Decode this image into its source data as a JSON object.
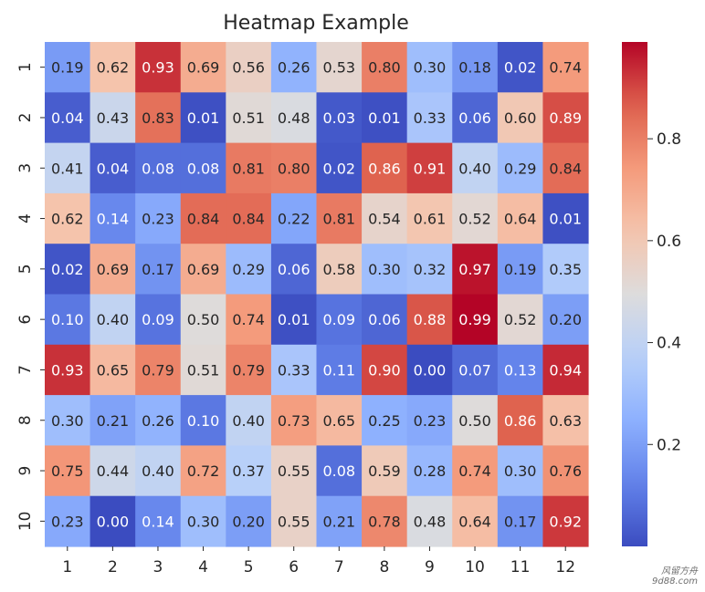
{
  "chart_data": {
    "type": "heatmap",
    "title": "Heatmap Example",
    "xlabel": "",
    "ylabel": "",
    "x_labels": [
      "1",
      "2",
      "3",
      "4",
      "5",
      "6",
      "7",
      "8",
      "9",
      "10",
      "11",
      "12"
    ],
    "y_labels": [
      "1",
      "2",
      "3",
      "4",
      "5",
      "6",
      "7",
      "8",
      "9",
      "10"
    ],
    "values": [
      [
        0.19,
        0.62,
        0.93,
        0.69,
        0.56,
        0.26,
        0.53,
        0.8,
        0.3,
        0.18,
        0.02,
        0.74
      ],
      [
        0.04,
        0.43,
        0.83,
        0.01,
        0.51,
        0.48,
        0.03,
        0.01,
        0.33,
        0.06,
        0.6,
        0.89
      ],
      [
        0.41,
        0.04,
        0.08,
        0.08,
        0.81,
        0.8,
        0.02,
        0.86,
        0.91,
        0.4,
        0.29,
        0.84
      ],
      [
        0.62,
        0.14,
        0.23,
        0.84,
        0.84,
        0.22,
        0.81,
        0.54,
        0.61,
        0.52,
        0.64,
        0.01
      ],
      [
        0.02,
        0.69,
        0.17,
        0.69,
        0.29,
        0.06,
        0.58,
        0.3,
        0.32,
        0.97,
        0.19,
        0.35
      ],
      [
        0.1,
        0.4,
        0.09,
        0.5,
        0.74,
        0.01,
        0.09,
        0.06,
        0.88,
        0.99,
        0.52,
        0.2
      ],
      [
        0.93,
        0.65,
        0.79,
        0.51,
        0.79,
        0.33,
        0.11,
        0.9,
        0.0,
        0.07,
        0.13,
        0.94
      ],
      [
        0.3,
        0.21,
        0.26,
        0.1,
        0.4,
        0.73,
        0.65,
        0.25,
        0.23,
        0.5,
        0.86,
        0.63
      ],
      [
        0.75,
        0.44,
        0.4,
        0.72,
        0.37,
        0.55,
        0.08,
        0.59,
        0.28,
        0.74,
        0.3,
        0.76
      ],
      [
        0.23,
        0.0,
        0.14,
        0.3,
        0.2,
        0.55,
        0.21,
        0.78,
        0.48,
        0.64,
        0.17,
        0.92
      ]
    ],
    "value_format": "0.00",
    "colormap": "coolwarm",
    "vmin": 0.0,
    "vmax": 0.99,
    "colorbar_ticks": [
      "0.2",
      "0.4",
      "0.6",
      "0.8"
    ],
    "colorbar_tick_values": [
      0.2,
      0.4,
      0.6,
      0.8
    ],
    "grid": false,
    "legend": "colorbar-right"
  },
  "watermark": {
    "line1": "风留方舟",
    "line2": "9d88.com"
  },
  "colors": {
    "text_dark": "#262626",
    "text_light": "#ffffff",
    "cmap_low": "#3b4cc0",
    "cmap_mid": "#dddddd",
    "cmap_high": "#b40426"
  }
}
